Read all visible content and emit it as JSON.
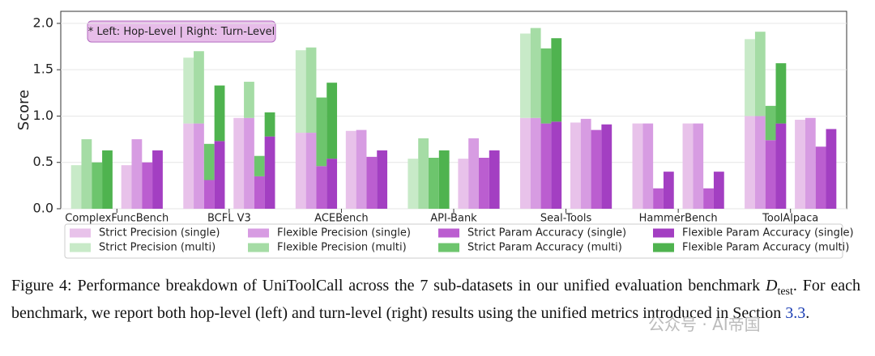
{
  "chart_data": {
    "type": "stacked_grouped_bar",
    "annotation": "* Left: Hop-Level  |  Right: Turn-Level",
    "ylabel": "Score",
    "categories": [
      "ComplexFuncBench",
      "BCFL V3",
      "ACEBench",
      "API-Bank",
      "Seal-Tools",
      "HammerBench",
      "ToolAlpaca"
    ],
    "ylim": [
      0,
      2.13
    ],
    "yticks": [
      {
        "value": 0,
        "label": "0.0"
      },
      {
        "value": 0.5,
        "label": "0.5"
      },
      {
        "value": 1,
        "label": "1.0"
      },
      {
        "value": 1.5,
        "label": "1.5"
      },
      {
        "value": 2,
        "label": "2.0"
      }
    ],
    "grid": true,
    "series": [
      {
        "name": "Strict Precision (single)",
        "color": "#e8c2ea",
        "values": [
          [
            0,
            0.47
          ],
          [
            0.92,
            0.98
          ],
          [
            0.82,
            0.84
          ],
          [
            0,
            0.54
          ],
          [
            0.98,
            0.93
          ],
          [
            0.92,
            0.92
          ],
          [
            1.0,
            0.96
          ]
        ]
      },
      {
        "name": "Strict Precision (multi)",
        "color": "#c8eac8",
        "values": [
          [
            0.47,
            0
          ],
          [
            0.71,
            0
          ],
          [
            0.89,
            0
          ],
          [
            0.54,
            0
          ],
          [
            0.91,
            0
          ],
          [
            0,
            0
          ],
          [
            0.83,
            0
          ]
        ]
      },
      {
        "name": "Flexible Precision (single)",
        "color": "#d79ce2",
        "values": [
          [
            0,
            0.75
          ],
          [
            0.92,
            0.98
          ],
          [
            0.82,
            0.85
          ],
          [
            0,
            0.76
          ],
          [
            0.98,
            0.97
          ],
          [
            0.92,
            0.92
          ],
          [
            1.0,
            0.98
          ]
        ]
      },
      {
        "name": "Flexible Precision (multi)",
        "color": "#a5dca5",
        "values": [
          [
            0.75,
            0
          ],
          [
            0.78,
            0.39
          ],
          [
            0.92,
            0
          ],
          [
            0.76,
            0
          ],
          [
            0.97,
            0
          ],
          [
            0,
            0
          ],
          [
            0.91,
            0
          ]
        ]
      },
      {
        "name": "Strict Param Accuracy (single)",
        "color": "#bb5ed0",
        "values": [
          [
            0,
            0.5
          ],
          [
            0.31,
            0.35
          ],
          [
            0.46,
            0.56
          ],
          [
            0,
            0.55
          ],
          [
            0.92,
            0.85
          ],
          [
            0.22,
            0.22
          ],
          [
            0.74,
            0.67
          ]
        ]
      },
      {
        "name": "Strict Param Accuracy (multi)",
        "color": "#6dc56d",
        "values": [
          [
            0.5,
            0
          ],
          [
            0.39,
            0.22
          ],
          [
            0.74,
            0
          ],
          [
            0.55,
            0
          ],
          [
            0.81,
            0
          ],
          [
            0,
            0
          ],
          [
            0.37,
            0
          ]
        ]
      },
      {
        "name": "Flexible Param Accuracy (single)",
        "color": "#a33fc2",
        "values": [
          [
            0,
            0.63
          ],
          [
            0.73,
            0.78
          ],
          [
            0.54,
            0.63
          ],
          [
            0,
            0.63
          ],
          [
            0.94,
            0.91
          ],
          [
            0.4,
            0.4
          ],
          [
            0.92,
            0.86
          ]
        ]
      },
      {
        "name": "Flexible Param Accuracy (multi)",
        "color": "#4fb34f",
        "values": [
          [
            0.63,
            0
          ],
          [
            0.6,
            0.26
          ],
          [
            0.82,
            0
          ],
          [
            0.63,
            0
          ],
          [
            0.9,
            0
          ],
          [
            0,
            0
          ],
          [
            0.65,
            0
          ]
        ]
      }
    ]
  },
  "caption": {
    "parts": [
      "Figure 4: Performance breakdown of UniToolCall across the 7 sub-datasets in our unified evaluation benchmark ",
      "D",
      "test",
      ". For each benchmark, we report both hop-level (left) and turn-level (right) results using the unified metrics introduced in Section ",
      "3.3",
      "."
    ]
  },
  "watermark": "公众号 · AI帝国"
}
